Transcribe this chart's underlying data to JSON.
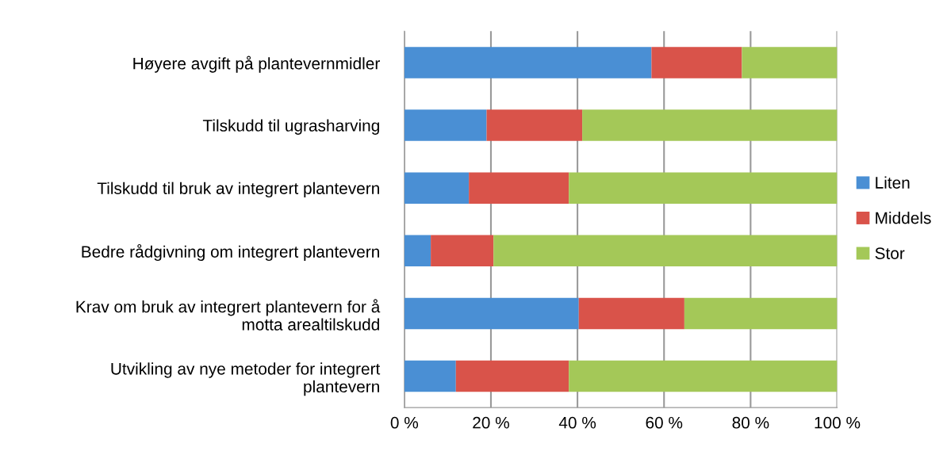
{
  "chart_data": {
    "type": "bar",
    "orientation": "horizontal",
    "stacked": true,
    "categories": [
      "Høyere avgift på plantevernmidler",
      "Tilskudd til ugrasharving",
      "Tilskudd til bruk av integrert plantevern",
      "Bedre rådgivning om integrert plantevern",
      "Krav om bruk av integrert plantevern for å\nmotta arealtilskudd",
      "Utvikling av nye metoder for integrert\nplantevern"
    ],
    "series": [
      {
        "name": "Liten",
        "color": "#4a8fd4",
        "values": [
          57.1,
          19.0,
          14.9,
          6.1,
          40.3,
          11.9
        ]
      },
      {
        "name": "Middels",
        "color": "#d9534a",
        "values": [
          20.9,
          22.1,
          23.1,
          14.5,
          24.4,
          26.1
        ]
      },
      {
        "name": "Stor",
        "color": "#a4c858",
        "values": [
          22.0,
          58.9,
          62.0,
          79.4,
          35.3,
          62.0
        ]
      }
    ],
    "xlim": [
      0,
      100
    ],
    "xticks": [
      {
        "value": 0,
        "label": "0 %"
      },
      {
        "value": 20,
        "label": "20 %"
      },
      {
        "value": 40,
        "label": "40 %"
      },
      {
        "value": 60,
        "label": "60 %"
      },
      {
        "value": 80,
        "label": "80 %"
      },
      {
        "value": 100,
        "label": "100 %"
      }
    ],
    "grid": "x",
    "legend": "right"
  }
}
